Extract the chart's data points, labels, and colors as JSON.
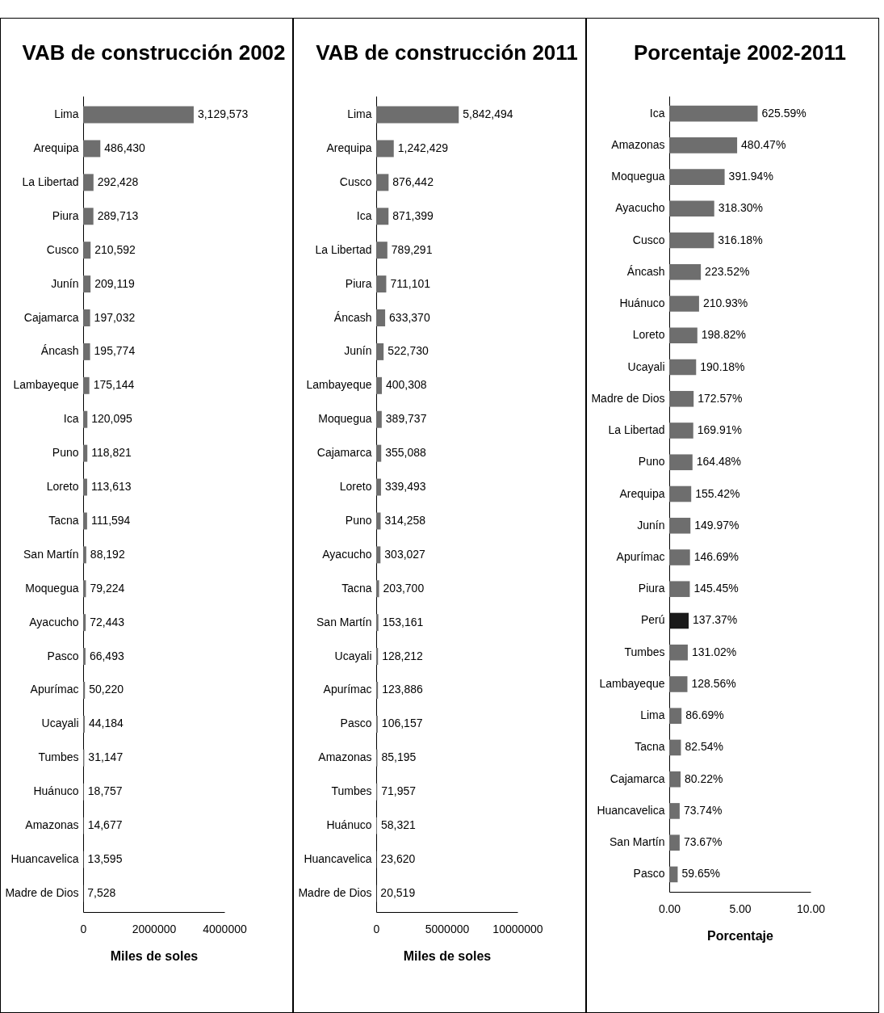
{
  "chart_data": [
    {
      "type": "bar",
      "orientation": "horizontal",
      "title": "VAB de construcción 2002",
      "xlabel": "Miles de soles",
      "categories": [
        "Lima",
        "Arequipa",
        "La Libertad",
        "Piura",
        "Cusco",
        "Junín",
        "Cajamarca",
        "Áncash",
        "Lambayeque",
        "Ica",
        "Puno",
        "Loreto",
        "Tacna",
        "San Martín",
        "Moquegua",
        "Ayacucho",
        "Pasco",
        "Apurímac",
        "Ucayali",
        "Tumbes",
        "Huánuco",
        "Amazonas",
        "Huancavelica",
        "Madre de Dios"
      ],
      "values": [
        3129573,
        486430,
        292428,
        289713,
        210592,
        209119,
        197032,
        195774,
        175144,
        120095,
        118821,
        113613,
        111594,
        88192,
        79224,
        72443,
        66493,
        50220,
        44184,
        31147,
        18757,
        14677,
        13595,
        7528
      ],
      "value_labels": [
        "3,129,573",
        "486,430",
        "292,428",
        "289,713",
        "210,592",
        "209,119",
        "197,032",
        "195,774",
        "175,144",
        "120,095",
        "118,821",
        "113,613",
        "111,594",
        "88,192",
        "79,224",
        "72,443",
        "66,493",
        "50,220",
        "44,184",
        "31,147",
        "18,757",
        "14,677",
        "13,595",
        "7,528"
      ],
      "color": "#6e6e6e",
      "xlim": [
        0,
        4000000
      ],
      "xticks": [
        0,
        2000000,
        4000000
      ]
    },
    {
      "type": "bar",
      "orientation": "horizontal",
      "title": "VAB de construcción 2011",
      "xlabel": "Miles de soles",
      "categories": [
        "Lima",
        "Arequipa",
        "Cusco",
        "Ica",
        "La Libertad",
        "Piura",
        "Áncash",
        "Junín",
        "Lambayeque",
        "Moquegua",
        "Cajamarca",
        "Loreto",
        "Puno",
        "Ayacucho",
        "Tacna",
        "San Martín",
        "Ucayali",
        "Apurímac",
        "Pasco",
        "Amazonas",
        "Tumbes",
        "Huánuco",
        "Huancavelica",
        "Madre de Dios"
      ],
      "values": [
        5842494,
        1242429,
        876442,
        871399,
        789291,
        711101,
        633370,
        522730,
        400308,
        389737,
        355088,
        339493,
        314258,
        303027,
        203700,
        153161,
        128212,
        123886,
        106157,
        85195,
        71957,
        58321,
        23620,
        20519
      ],
      "value_labels": [
        "5,842,494",
        "1,242,429",
        "876,442",
        "871,399",
        "789,291",
        "711,101",
        "633,370",
        "522,730",
        "400,308",
        "389,737",
        "355,088",
        "339,493",
        "314,258",
        "303,027",
        "203,700",
        "153,161",
        "128,212",
        "123,886",
        "106,157",
        "85,195",
        "71,957",
        "58,321",
        "23,620",
        "20,519"
      ],
      "color": "#6e6e6e",
      "xlim": [
        0,
        10000000
      ],
      "xticks": [
        0,
        5000000,
        10000000
      ]
    },
    {
      "type": "bar",
      "orientation": "horizontal",
      "title": "Porcentaje 2002-2011",
      "xlabel": "Porcentaje",
      "categories": [
        "Ica",
        "Amazonas",
        "Moquegua",
        "Ayacucho",
        "Cusco",
        "Áncash",
        "Huánuco",
        "Loreto",
        "Ucayali",
        "Madre de Dios",
        "La Libertad",
        "Puno",
        "Arequipa",
        "Junín",
        "Apurímac",
        "Piura",
        "Perú",
        "Tumbes",
        "Lambayeque",
        "Lima",
        "Tacna",
        "Cajamarca",
        "Huancavelica",
        "San Martín",
        "Pasco"
      ],
      "values": [
        6.2559,
        4.8047,
        3.9194,
        3.183,
        3.1618,
        2.2352,
        2.1093,
        1.9882,
        1.9018,
        1.7257,
        1.6991,
        1.6448,
        1.5542,
        1.4997,
        1.4669,
        1.4545,
        1.3737,
        1.3102,
        1.2856,
        0.8669,
        0.8254,
        0.8022,
        0.7374,
        0.7367,
        0.5965
      ],
      "value_labels": [
        "625.59%",
        "480.47%",
        "391.94%",
        "318.30%",
        "316.18%",
        "223.52%",
        "210.93%",
        "198.82%",
        "190.18%",
        "172.57%",
        "169.91%",
        "164.48%",
        "155.42%",
        "149.97%",
        "146.69%",
        "145.45%",
        "137.37%",
        "131.02%",
        "128.56%",
        "86.69%",
        "82.54%",
        "80.22%",
        "73.74%",
        "73.67%",
        "59.65%"
      ],
      "colors": [
        "#6e6e6e",
        "#6e6e6e",
        "#6e6e6e",
        "#6e6e6e",
        "#6e6e6e",
        "#6e6e6e",
        "#6e6e6e",
        "#6e6e6e",
        "#6e6e6e",
        "#6e6e6e",
        "#6e6e6e",
        "#6e6e6e",
        "#6e6e6e",
        "#6e6e6e",
        "#6e6e6e",
        "#6e6e6e",
        "#1a1a1a",
        "#6e6e6e",
        "#6e6e6e",
        "#6e6e6e",
        "#6e6e6e",
        "#6e6e6e",
        "#6e6e6e",
        "#6e6e6e",
        "#6e6e6e"
      ],
      "xlim": [
        0,
        10
      ],
      "xticks": [
        {
          "value": 0,
          "label": "0.00"
        },
        {
          "value": 5,
          "label": "5.00"
        },
        {
          "value": 10,
          "label": "10.00"
        }
      ]
    }
  ]
}
